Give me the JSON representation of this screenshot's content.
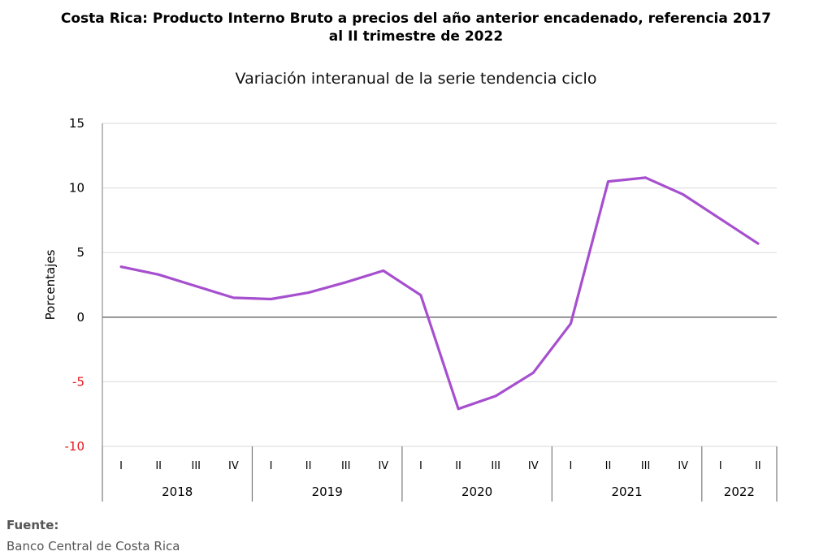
{
  "chart_data": {
    "type": "line",
    "title": "Costa Rica: Producto Interno Bruto a precios del año anterior encadenado, referencia 2017 al II trimestre de 2022",
    "title_lines": [
      "Costa Rica: Producto Interno Bruto a precios del año anterior encadenado, referencia 2017",
      "al II trimestre de 2022"
    ],
    "subtitle": "Variación interanual de la serie tendencia ciclo",
    "ylabel": "Porcentajes",
    "ylim": [
      -10,
      15
    ],
    "yticks": [
      -10,
      -5,
      0,
      5,
      10,
      15
    ],
    "negative_tick_color": "#e8191f",
    "grid": true,
    "line_color": "#a64fcf",
    "quarters": [
      "I",
      "II",
      "III",
      "IV",
      "I",
      "II",
      "III",
      "IV",
      "I",
      "II",
      "III",
      "IV",
      "I",
      "II",
      "III",
      "IV",
      "I",
      "II"
    ],
    "years": [
      {
        "label": "2018",
        "quarters": 4
      },
      {
        "label": "2019",
        "quarters": 4
      },
      {
        "label": "2020",
        "quarters": 4
      },
      {
        "label": "2021",
        "quarters": 4
      },
      {
        "label": "2022",
        "quarters": 2
      }
    ],
    "series": [
      {
        "values": [
          3.9,
          3.3,
          2.4,
          1.5,
          1.4,
          1.9,
          2.7,
          3.6,
          1.7,
          -7.1,
          -6.1,
          -4.3,
          -0.5,
          10.5,
          10.8,
          9.5,
          7.6,
          5.7
        ]
      }
    ]
  },
  "source": {
    "label": "Fuente:",
    "text": "Banco Central de Costa Rica"
  }
}
